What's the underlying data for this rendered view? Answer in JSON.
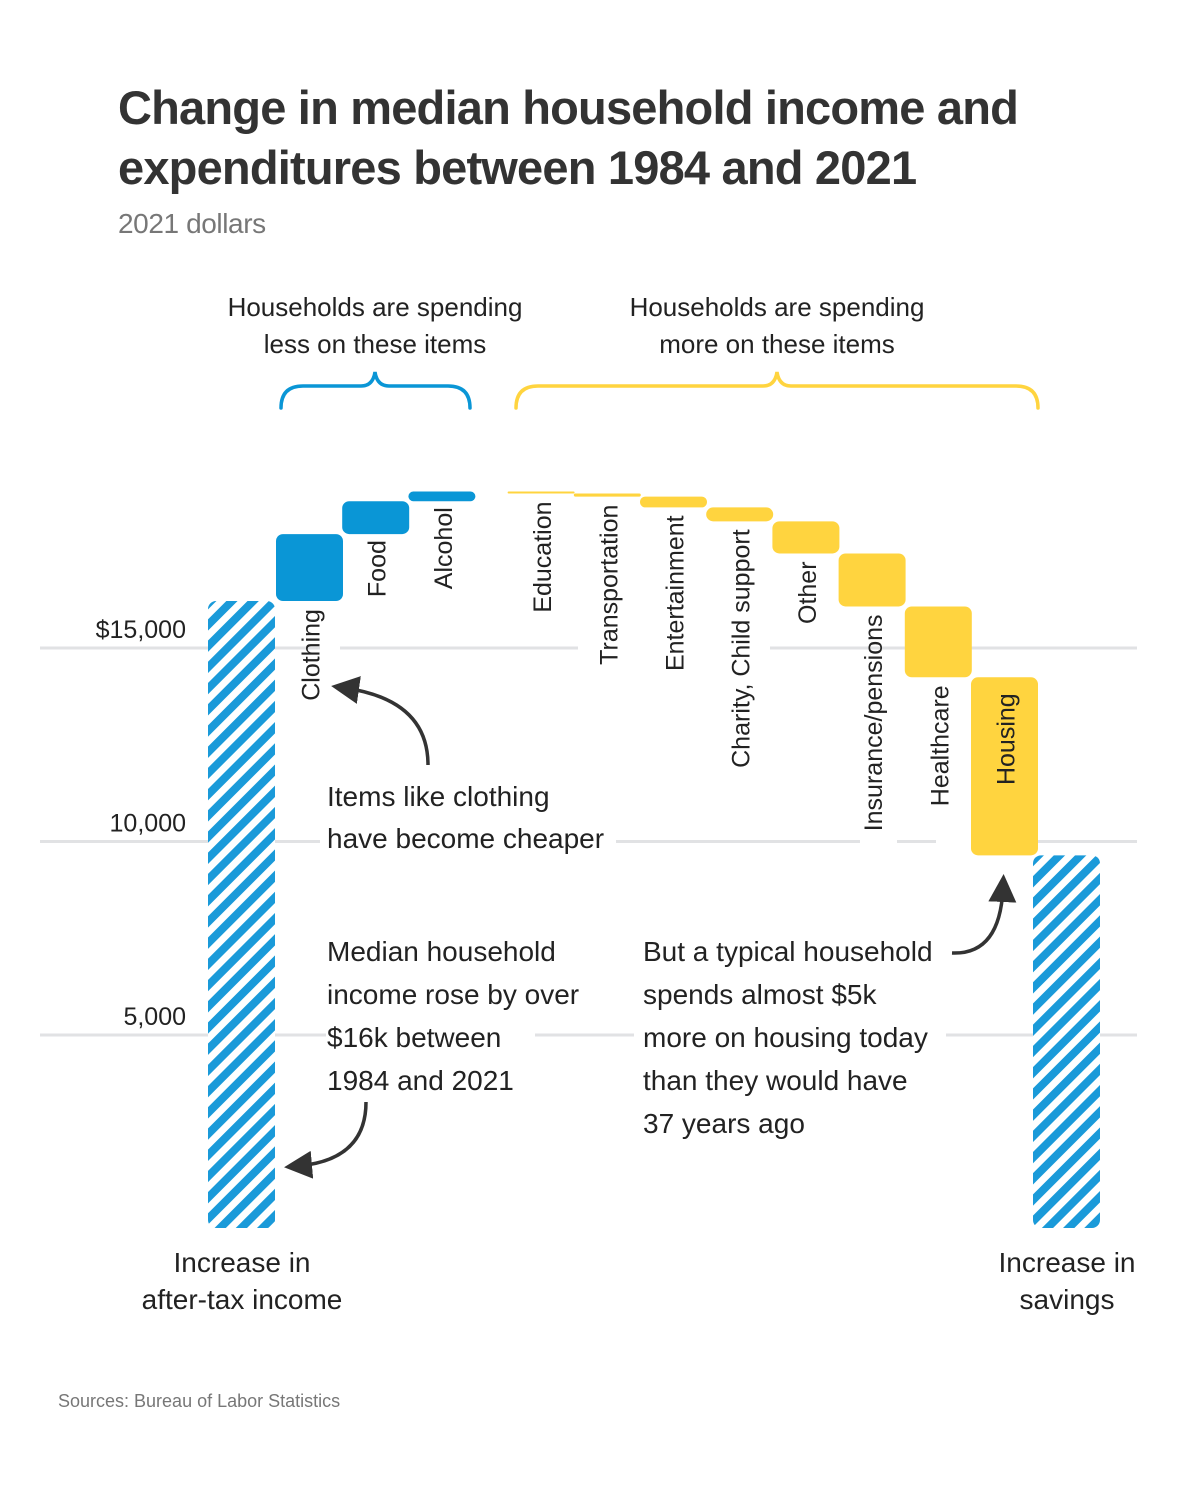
{
  "header": {
    "title": "Change in median household income and\nexpenditures between 1984 and 2021",
    "subtitle": "2021 dollars"
  },
  "footer": {
    "source": "Sources: Bureau of Labor Statistics"
  },
  "colors": {
    "less": "#0a96d6",
    "more": "#ffd43f",
    "hatch": "#1a9ad9",
    "grid": "#e1e2e4",
    "arrow": "#333333"
  },
  "chart_data": {
    "type": "waterfall",
    "title": "Change in median household income and expenditures between 1984 and 2021",
    "subtitle": "2021 dollars",
    "units": "2021 dollars",
    "ylim": [
      0,
      16000
    ],
    "yticks": [
      {
        "value": 5000,
        "label": "5,000"
      },
      {
        "value": 10000,
        "label": "10,000"
      },
      {
        "value": 15000,
        "label": "$15,000"
      }
    ],
    "grid": true,
    "start": {
      "label": "Increase in after-tax income",
      "label_lines": [
        "Increase in",
        "after-tax income"
      ],
      "value": 16200
    },
    "steps": [
      {
        "label": "Clothing",
        "change": 1730,
        "group": "less"
      },
      {
        "label": "Food",
        "change": 850,
        "group": "less"
      },
      {
        "label": "Alcohol",
        "change": 250,
        "group": "less"
      },
      {
        "label": "Education",
        "change": -50,
        "group": "more"
      },
      {
        "label": "Transportation",
        "change": -80,
        "group": "more"
      },
      {
        "label": "Entertainment",
        "change": -280,
        "group": "more"
      },
      {
        "label": "Charity, Child support",
        "change": -360,
        "group": "more"
      },
      {
        "label": "Other",
        "change": -830,
        "group": "more"
      },
      {
        "label": "Insurance/pensions",
        "change": -1370,
        "group": "more"
      },
      {
        "label": "Healthcare",
        "change": -1830,
        "group": "more"
      },
      {
        "label": "Housing",
        "change": -4600,
        "group": "more"
      }
    ],
    "end": {
      "label": "Increase in savings",
      "label_lines": [
        "Increase in",
        "savings"
      ],
      "value": 9630
    },
    "groups": [
      {
        "key": "less",
        "label_lines": [
          "Households are spending",
          "less on these items"
        ]
      },
      {
        "key": "more",
        "label_lines": [
          "Households are spending",
          "more on these items"
        ]
      }
    ],
    "annotations": [
      {
        "name": "clothing-note",
        "lines": [
          "Items like clothing",
          "have become cheaper"
        ]
      },
      {
        "name": "income-note",
        "lines": [
          "Median household",
          "income rose by over",
          "$16k between",
          "1984 and 2021"
        ]
      },
      {
        "name": "housing-note",
        "lines": [
          "But a typical household",
          "spends almost $5k",
          "more on housing today",
          "than they would have",
          "37 years ago"
        ]
      }
    ]
  }
}
